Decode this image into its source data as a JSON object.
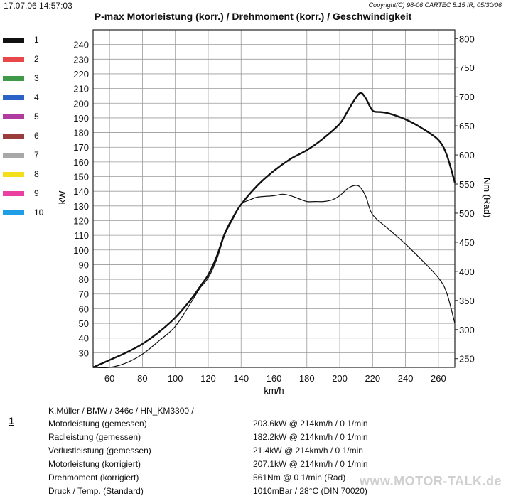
{
  "header": {
    "timestamp": "17.07.06 14:57:03",
    "copyright": "Copyright(C) 98-06 CARTEC 5.15 IR, 05/30/06"
  },
  "legend": {
    "items": [
      {
        "label": "1",
        "color": "#111111"
      },
      {
        "label": "2",
        "color": "#e8484a"
      },
      {
        "label": "3",
        "color": "#3e9a48"
      },
      {
        "label": "4",
        "color": "#2a63c7"
      },
      {
        "label": "5",
        "color": "#b03ca0"
      },
      {
        "label": "6",
        "color": "#9b3c3c"
      },
      {
        "label": "7",
        "color": "#a8a8a8"
      },
      {
        "label": "8",
        "color": "#f3e01b"
      },
      {
        "label": "9",
        "color": "#ea3fa3"
      },
      {
        "label": "10",
        "color": "#1e9fe5"
      }
    ]
  },
  "chart_data": {
    "type": "line",
    "title": "P-max Motorleistung (korr.) / Drehmoment (korr.) / Geschwindigkeit",
    "xlabel": "km/h",
    "ylabel": "kW",
    "y2label": "Nm (Rad)",
    "xlim": [
      50,
      270
    ],
    "ylim": [
      20,
      250
    ],
    "y2lim": [
      235,
      815
    ],
    "xticks": [
      60,
      80,
      100,
      120,
      140,
      160,
      180,
      200,
      220,
      240,
      260
    ],
    "yticks": [
      30,
      40,
      50,
      60,
      70,
      80,
      90,
      100,
      110,
      120,
      130,
      140,
      150,
      160,
      170,
      180,
      190,
      200,
      210,
      220,
      230,
      240
    ],
    "y2ticks": [
      250,
      300,
      350,
      400,
      450,
      500,
      550,
      600,
      650,
      700,
      750,
      800
    ],
    "grid": true,
    "series": [
      {
        "axis": "left",
        "color": "#111111",
        "x": [
          50,
          60,
          70,
          80,
          90,
          100,
          110,
          115,
          120,
          125,
          130,
          135,
          140,
          150,
          160,
          170,
          180,
          190,
          200,
          205,
          210,
          213,
          216,
          220,
          225,
          230,
          240,
          250,
          260,
          265,
          270
        ],
        "y": [
          20,
          25,
          30,
          36,
          44,
          54,
          67,
          75,
          83,
          95,
          111,
          122,
          131,
          144,
          154,
          162,
          168,
          176,
          186,
          195,
          204,
          207,
          203,
          195,
          194,
          193,
          189,
          183,
          175,
          165,
          146
        ]
      },
      {
        "axis": "left",
        "color": "#111111",
        "x": [
          50,
          60,
          70,
          80,
          90,
          100,
          110,
          115,
          120,
          125,
          130,
          135,
          140,
          145,
          150,
          160,
          165,
          170,
          175,
          180,
          185,
          190,
          195,
          200,
          205,
          210,
          213,
          216,
          220,
          230,
          240,
          250,
          260,
          265,
          270
        ],
        "y": [
          20,
          20,
          23,
          29,
          38,
          48,
          65,
          74,
          81,
          93,
          110,
          121,
          131,
          134,
          136,
          137,
          138,
          137,
          135,
          133,
          133,
          133,
          134,
          137,
          142,
          144,
          142,
          136,
          124,
          114,
          104,
          93,
          81,
          71,
          50
        ]
      }
    ]
  },
  "results": {
    "run_number": "1",
    "description": "K.Müller / BMW / 346c / HN_KM3300 /",
    "rows": [
      {
        "label": "Motorleistung (gemessen)",
        "value": "203.6kW @ 214km/h / 0 1/min"
      },
      {
        "label": "Radleistung (gemessen)",
        "value": "182.2kW @ 214km/h / 0 1/min"
      },
      {
        "label": "Verlustleistung (gemessen)",
        "value": "21.4kW @ 214km/h / 0 1/min"
      },
      {
        "label": "Motorleistung (korrigiert)",
        "value": "207.1kW @ 214km/h / 0 1/min"
      },
      {
        "label": "Drehmoment (korrigiert)",
        "value": "561Nm @ 0 1/min (Rad)"
      },
      {
        "label": "Druck / Temp. (Standard)",
        "value": "1010mBar / 28°C   (DIN 70020)"
      }
    ]
  },
  "watermark": "www.MOTOR-TALK.de"
}
